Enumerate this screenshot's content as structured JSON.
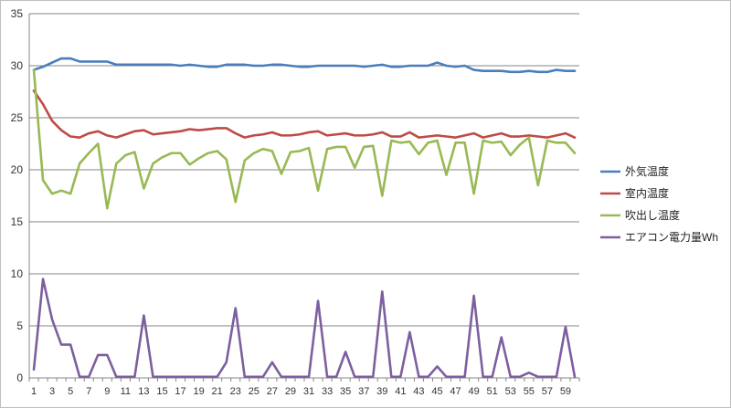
{
  "chart_data": {
    "type": "line",
    "title": "",
    "xlabel": "",
    "ylabel": "",
    "x": [
      1,
      2,
      3,
      4,
      5,
      6,
      7,
      8,
      9,
      10,
      11,
      12,
      13,
      14,
      15,
      16,
      17,
      18,
      19,
      20,
      21,
      22,
      23,
      24,
      25,
      26,
      27,
      28,
      29,
      30,
      31,
      32,
      33,
      34,
      35,
      36,
      37,
      38,
      39,
      40,
      41,
      42,
      43,
      44,
      45,
      46,
      47,
      48,
      49,
      50,
      51,
      52,
      53,
      54,
      55,
      56,
      57,
      58,
      59,
      60
    ],
    "x_tick_labels": [
      "1",
      "3",
      "5",
      "7",
      "9",
      "11",
      "13",
      "15",
      "17",
      "19",
      "21",
      "23",
      "25",
      "27",
      "29",
      "31",
      "33",
      "35",
      "37",
      "39",
      "41",
      "43",
      "45",
      "47",
      "49",
      "51",
      "53",
      "55",
      "57",
      "59"
    ],
    "ylim": [
      0,
      35
    ],
    "y_ticks": [
      0,
      5,
      10,
      15,
      20,
      25,
      30,
      35
    ],
    "grid": "horizontal",
    "legend_position": "right",
    "series": [
      {
        "name": "外気温度",
        "color": "#4a7ebb",
        "values": [
          29.6,
          29.9,
          30.3,
          30.7,
          30.7,
          30.4,
          30.4,
          30.4,
          30.4,
          30.1,
          30.1,
          30.1,
          30.1,
          30.1,
          30.1,
          30.1,
          30.0,
          30.1,
          30.0,
          29.9,
          29.9,
          30.1,
          30.1,
          30.1,
          30.0,
          30.0,
          30.1,
          30.1,
          30.0,
          29.9,
          29.9,
          30.0,
          30.0,
          30.0,
          30.0,
          30.0,
          29.9,
          30.0,
          30.1,
          29.9,
          29.9,
          30.0,
          30.0,
          30.0,
          30.3,
          30.0,
          29.9,
          30.0,
          29.6,
          29.5,
          29.5,
          29.5,
          29.4,
          29.4,
          29.5,
          29.4,
          29.4,
          29.6,
          29.5,
          29.5
        ]
      },
      {
        "name": "室内温度",
        "color": "#be4b48",
        "values": [
          27.6,
          26.3,
          24.7,
          23.8,
          23.2,
          23.1,
          23.5,
          23.7,
          23.3,
          23.1,
          23.4,
          23.7,
          23.8,
          23.4,
          23.5,
          23.6,
          23.7,
          23.9,
          23.8,
          23.9,
          24.0,
          24.0,
          23.5,
          23.1,
          23.3,
          23.4,
          23.6,
          23.3,
          23.3,
          23.4,
          23.6,
          23.7,
          23.3,
          23.4,
          23.5,
          23.3,
          23.3,
          23.4,
          23.6,
          23.2,
          23.2,
          23.6,
          23.1,
          23.2,
          23.3,
          23.2,
          23.1,
          23.3,
          23.5,
          23.1,
          23.3,
          23.5,
          23.2,
          23.2,
          23.3,
          23.2,
          23.1,
          23.3,
          23.5,
          23.1
        ]
      },
      {
        "name": "吹出し温度",
        "color": "#98b954",
        "values": [
          29.6,
          19.0,
          17.7,
          18.0,
          17.7,
          20.6,
          21.6,
          22.5,
          16.3,
          20.6,
          21.4,
          21.7,
          18.2,
          20.6,
          21.2,
          21.6,
          21.6,
          20.5,
          21.1,
          21.6,
          21.8,
          21.0,
          16.9,
          20.9,
          21.6,
          22.0,
          21.8,
          19.6,
          21.7,
          21.8,
          22.1,
          18.0,
          22.0,
          22.2,
          22.2,
          20.2,
          22.2,
          22.3,
          17.5,
          22.8,
          22.6,
          22.7,
          21.5,
          22.6,
          22.8,
          19.5,
          22.6,
          22.6,
          17.7,
          22.8,
          22.6,
          22.7,
          21.4,
          22.4,
          23.1,
          18.5,
          22.8,
          22.6,
          22.6,
          21.6
        ]
      },
      {
        "name": "エアコン電力量Wh",
        "color": "#7d5fa0",
        "values": [
          0.8,
          9.5,
          5.6,
          3.2,
          3.2,
          0.1,
          0.1,
          2.2,
          2.2,
          0.1,
          0.1,
          0.1,
          6.0,
          0.1,
          0.1,
          0.1,
          0.1,
          0.1,
          0.1,
          0.1,
          0.1,
          1.5,
          6.7,
          0.1,
          0.1,
          0.1,
          1.5,
          0.1,
          0.1,
          0.1,
          0.1,
          7.4,
          0.1,
          0.1,
          2.5,
          0.1,
          0.1,
          0.1,
          8.3,
          0.1,
          0.1,
          4.4,
          0.1,
          0.1,
          1.1,
          0.1,
          0.1,
          0.1,
          7.9,
          0.1,
          0.1,
          3.9,
          0.1,
          0.1,
          0.5,
          0.1,
          0.1,
          0.1,
          4.9,
          0.1
        ]
      }
    ]
  }
}
